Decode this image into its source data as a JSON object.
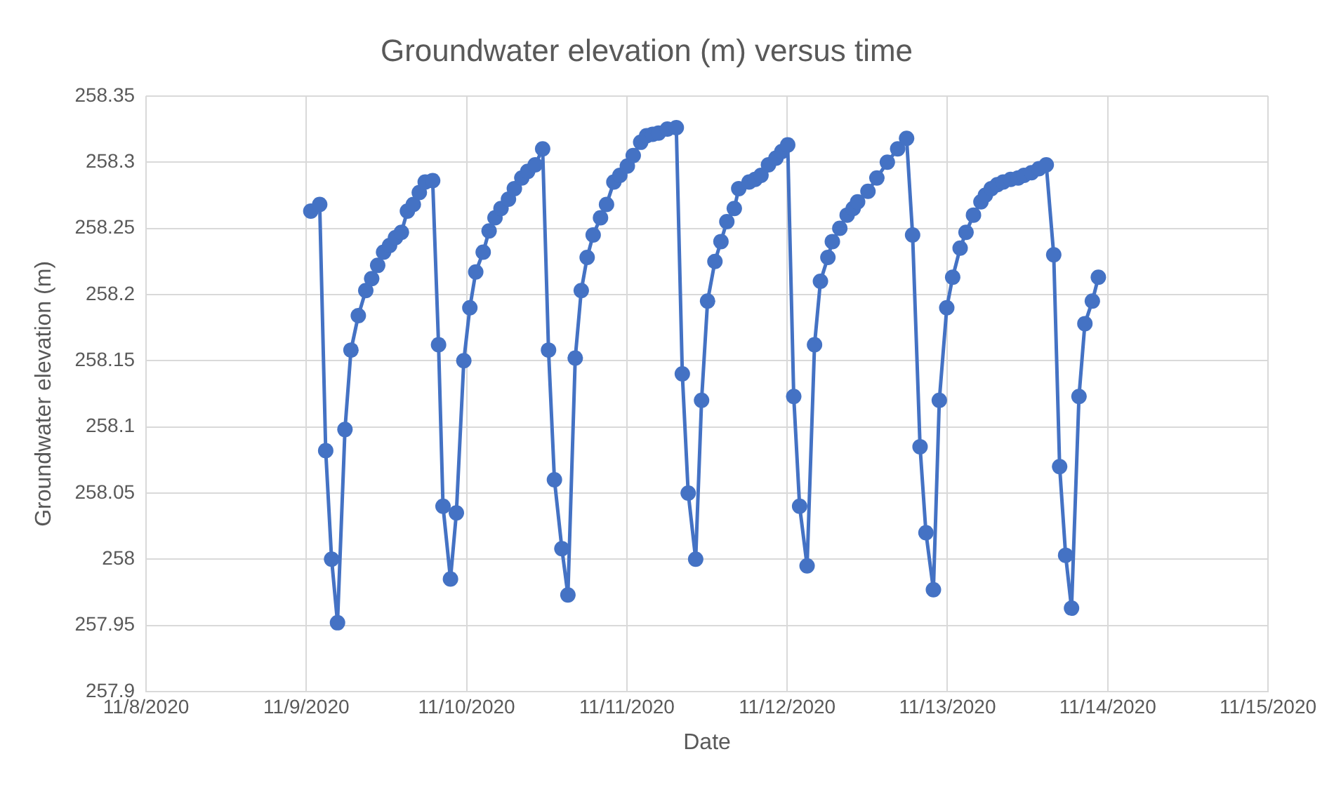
{
  "chart_data": {
    "type": "line",
    "title": "Groundwater elevation (m) versus time",
    "xlabel": "Date",
    "ylabel": "Groundwater elevation (m)",
    "x": [
      "2020-11-09T00:40",
      "2020-11-09T02:00",
      "2020-11-09T02:54",
      "2020-11-09T03:47",
      "2020-11-09T04:40",
      "2020-11-09T05:47",
      "2020-11-09T06:41",
      "2020-11-09T07:47",
      "2020-11-09T08:54",
      "2020-11-09T09:47",
      "2020-11-09T10:41",
      "2020-11-09T11:34",
      "2020-11-09T12:28",
      "2020-11-09T13:21",
      "2020-11-09T14:14",
      "2020-11-09T15:08",
      "2020-11-09T16:01",
      "2020-11-09T16:55",
      "2020-11-09T17:48",
      "2020-11-09T18:55",
      "2020-11-09T19:48",
      "2020-11-09T20:28",
      "2020-11-09T21:35",
      "2020-11-09T22:28",
      "2020-11-09T23:35",
      "2020-11-10T00:29",
      "2020-11-10T01:22",
      "2020-11-10T02:29",
      "2020-11-10T03:22",
      "2020-11-10T04:15",
      "2020-11-10T05:09",
      "2020-11-10T06:16",
      "2020-11-10T07:09",
      "2020-11-10T08:16",
      "2020-11-10T09:09",
      "2020-11-10T10:16",
      "2020-11-10T11:23",
      "2020-11-10T12:16",
      "2020-11-10T13:09",
      "2020-11-10T14:16",
      "2020-11-10T15:10",
      "2020-11-10T16:16",
      "2020-11-10T17:10",
      "2020-11-10T18:03",
      "2020-11-10T18:57",
      "2020-11-10T20:03",
      "2020-11-10T20:57",
      "2020-11-10T22:03",
      "2020-11-10T22:57",
      "2020-11-11T00:04",
      "2020-11-11T00:57",
      "2020-11-11T02:04",
      "2020-11-11T02:57",
      "2020-11-11T03:51",
      "2020-11-11T04:44",
      "2020-11-11T06:04",
      "2020-11-11T07:24",
      "2020-11-11T08:18",
      "2020-11-11T09:11",
      "2020-11-11T10:18",
      "2020-11-11T11:11",
      "2020-11-11T12:05",
      "2020-11-11T13:11",
      "2020-11-11T14:05",
      "2020-11-11T14:58",
      "2020-11-11T16:05",
      "2020-11-11T16:45",
      "2020-11-11T18:18",
      "2020-11-11T19:12",
      "2020-11-11T20:05",
      "2020-11-11T21:12",
      "2020-11-11T22:19",
      "2020-11-11T23:12",
      "2020-11-12T00:05",
      "2020-11-12T00:59",
      "2020-11-12T01:52",
      "2020-11-12T02:59",
      "2020-11-12T04:06",
      "2020-11-12T04:59",
      "2020-11-12T06:06",
      "2020-11-12T06:46",
      "2020-11-12T07:53",
      "2020-11-12T08:59",
      "2020-11-12T09:53",
      "2020-11-12T10:33",
      "2020-11-12T12:06",
      "2020-11-12T13:26",
      "2020-11-12T15:00",
      "2020-11-12T16:33",
      "2020-11-12T17:53",
      "2020-11-12T18:47",
      "2020-11-12T19:54",
      "2020-11-12T20:47",
      "2020-11-12T21:54",
      "2020-11-12T22:47",
      "2020-11-12T23:54",
      "2020-11-13T00:47",
      "2020-11-13T01:54",
      "2020-11-13T02:47",
      "2020-11-13T03:54",
      "2020-11-13T05:01",
      "2020-11-13T05:41",
      "2020-11-13T06:34",
      "2020-11-13T07:28",
      "2020-11-13T08:21",
      "2020-11-13T09:28",
      "2020-11-13T10:35",
      "2020-11-13T11:28",
      "2020-11-13T12:35",
      "2020-11-13T13:42",
      "2020-11-13T14:48",
      "2020-11-13T15:55",
      "2020-11-13T16:48",
      "2020-11-13T17:42",
      "2020-11-13T18:35",
      "2020-11-13T19:42",
      "2020-11-13T20:35",
      "2020-11-13T21:42",
      "2020-11-13T22:36"
    ],
    "series": [
      {
        "color": "#4472c4",
        "values": [
          258.263,
          258.268,
          258.082,
          258.0,
          257.952,
          258.098,
          258.158,
          258.184,
          258.203,
          258.212,
          258.222,
          258.232,
          258.237,
          258.243,
          258.247,
          258.263,
          258.268,
          258.277,
          258.285,
          258.286,
          258.162,
          258.04,
          257.985,
          258.035,
          258.15,
          258.19,
          258.217,
          258.232,
          258.248,
          258.258,
          258.265,
          258.272,
          258.28,
          258.288,
          258.293,
          258.298,
          258.31,
          258.158,
          258.06,
          258.008,
          257.973,
          258.152,
          258.203,
          258.228,
          258.245,
          258.258,
          258.268,
          258.285,
          258.29,
          258.297,
          258.305,
          258.315,
          258.32,
          258.321,
          258.322,
          258.325,
          258.326,
          258.14,
          258.05,
          258.0,
          258.12,
          258.195,
          258.225,
          258.24,
          258.255,
          258.265,
          258.28,
          258.285,
          258.287,
          258.29,
          258.298,
          258.303,
          258.308,
          258.313,
          258.123,
          258.04,
          257.995,
          258.162,
          258.21,
          258.228,
          258.24,
          258.25,
          258.26,
          258.265,
          258.27,
          258.278,
          258.288,
          258.3,
          258.31,
          258.318,
          258.245,
          258.085,
          258.02,
          257.977,
          258.12,
          258.19,
          258.213,
          258.235,
          258.247,
          258.26,
          258.27,
          258.275,
          258.28,
          258.283,
          258.285,
          258.287,
          258.288,
          258.29,
          258.292,
          258.295,
          258.298,
          258.23,
          258.07,
          258.003,
          257.963,
          258.123,
          258.178,
          258.195,
          258.213
        ]
      }
    ],
    "xlim": [
      "2020-11-08",
      "2020-11-15"
    ],
    "xticks": [
      {
        "value": "2020-11-08",
        "label": "11/8/2020"
      },
      {
        "value": "2020-11-09",
        "label": "11/9/2020"
      },
      {
        "value": "2020-11-10",
        "label": "11/10/2020"
      },
      {
        "value": "2020-11-11",
        "label": "11/11/2020"
      },
      {
        "value": "2020-11-12",
        "label": "11/12/2020"
      },
      {
        "value": "2020-11-13",
        "label": "11/13/2020"
      },
      {
        "value": "2020-11-14",
        "label": "11/14/2020"
      },
      {
        "value": "2020-11-15",
        "label": "11/15/2020"
      }
    ],
    "ylim": [
      257.9,
      258.35
    ],
    "yticks": [
      257.9,
      257.95,
      258,
      258.05,
      258.1,
      258.15,
      258.2,
      258.25,
      258.3,
      258.35
    ],
    "grid": true,
    "marker": "circle",
    "line_style": "solid",
    "legend": false
  }
}
